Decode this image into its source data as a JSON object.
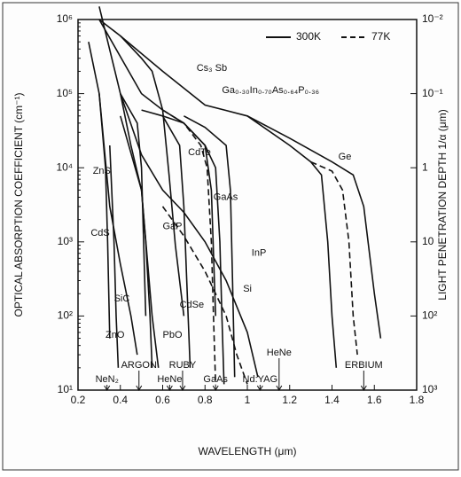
{
  "chart_data": {
    "type": "line",
    "ylabel": "OPTICAL ABSORPTION COEFFICIENT (cm⁻¹)",
    "y2label": "LIGHT PENETRATION DEPTH 1/α (μm)",
    "xlabel": "WAVELENGTH (μm)",
    "log_y": true,
    "log_y2": true,
    "y2_reversed": true,
    "xlim": [
      0.2,
      1.8
    ],
    "xticks": [
      0.2,
      0.4,
      0.6,
      0.8,
      1.0,
      1.2,
      1.4,
      1.6,
      1.8
    ],
    "ylim": [
      10,
      1000000
    ],
    "yticks": [
      {
        "value": 10,
        "label": "10¹"
      },
      {
        "value": 100,
        "label": "10²"
      },
      {
        "value": 1000,
        "label": "10³"
      },
      {
        "value": 10000,
        "label": "10⁴"
      },
      {
        "value": 100000,
        "label": "10⁵"
      },
      {
        "value": 1000000,
        "label": "10⁶"
      }
    ],
    "y2lim": [
      0.01,
      1000
    ],
    "y2ticks": [
      {
        "value": 0.01,
        "label": "10⁻²"
      },
      {
        "value": 0.1,
        "label": "10⁻¹"
      },
      1,
      10,
      {
        "value": 100,
        "label": "10²"
      },
      {
        "value": 1000,
        "label": "10³"
      }
    ],
    "legend": [
      {
        "label": "300K",
        "style": "solid"
      },
      {
        "label": "77K",
        "style": "dashed"
      }
    ],
    "color": "#111111",
    "series": [
      {
        "name": "Cs₃ Sb",
        "style": "solid",
        "x": [
          0.3,
          0.4,
          0.5,
          0.55,
          0.6,
          0.63,
          0.66,
          0.7
        ],
        "values": [
          1000000,
          600000,
          300000,
          200000,
          60000,
          8000,
          900,
          100
        ]
      },
      {
        "name": "Ge",
        "style": "solid",
        "x": [
          0.4,
          0.6,
          0.8,
          1.0,
          1.2,
          1.4,
          1.5,
          1.55,
          1.6,
          1.63
        ],
        "values": [
          600000,
          200000,
          70000,
          50000,
          25000,
          12000,
          8000,
          3000,
          200,
          50
        ]
      },
      {
        "style": "dashed",
        "x": [
          1.3,
          1.4,
          1.45,
          1.48,
          1.5,
          1.52
        ],
        "values": [
          12000,
          9000,
          5000,
          1000,
          100,
          30
        ]
      },
      {
        "name": "Ga₀.₃₀In₀.₇₀As₀.₆₄P₀.₃₆",
        "style": "solid",
        "x": [
          1.0,
          1.2,
          1.3,
          1.35,
          1.38,
          1.4,
          1.42
        ],
        "values": [
          50000,
          20000,
          12000,
          8000,
          1000,
          100,
          20
        ]
      },
      {
        "name": "Si",
        "style": "solid",
        "x": [
          0.3,
          0.4,
          0.5,
          0.6,
          0.7,
          0.8,
          0.9,
          1.0,
          1.05
        ],
        "values": [
          1500000,
          100000,
          15000,
          5000,
          2500,
          1000,
          300,
          60,
          15
        ]
      },
      {
        "style": "dashed",
        "x": [
          0.6,
          0.7,
          0.8,
          0.9,
          0.95,
          1.0
        ],
        "values": [
          3000,
          1200,
          400,
          100,
          30,
          12
        ]
      },
      {
        "name": "GaAs",
        "style": "solid",
        "x": [
          0.3,
          0.5,
          0.6,
          0.7,
          0.8,
          0.85,
          0.87,
          0.88,
          0.89
        ],
        "values": [
          1000000,
          100000,
          60000,
          40000,
          20000,
          10000,
          1000,
          100,
          12
        ]
      },
      {
        "style": "dashed",
        "x": [
          0.6,
          0.7,
          0.78,
          0.81,
          0.83,
          0.84,
          0.85
        ],
        "values": [
          60000,
          40000,
          20000,
          10000,
          1000,
          100,
          12
        ]
      },
      {
        "name": "InP",
        "style": "solid",
        "x": [
          0.7,
          0.8,
          0.9,
          0.92,
          0.93,
          0.94
        ],
        "values": [
          50000,
          35000,
          20000,
          5000,
          300,
          15
        ]
      },
      {
        "name": "CdTe",
        "style": "solid",
        "x": [
          0.5,
          0.6,
          0.7,
          0.8,
          0.83,
          0.85
        ],
        "values": [
          60000,
          50000,
          40000,
          20000,
          5000,
          100
        ]
      },
      {
        "name": "GaP",
        "style": "solid",
        "x": [
          0.4,
          0.45,
          0.5,
          0.52,
          0.54,
          0.55
        ],
        "values": [
          100000,
          20000,
          5000,
          1000,
          100,
          20
        ]
      },
      {
        "name": "ZnS",
        "style": "solid",
        "x": [
          0.25,
          0.3,
          0.33,
          0.34,
          0.35
        ],
        "values": [
          500000,
          100000,
          10000,
          1000,
          50
        ]
      },
      {
        "name": "CdS",
        "style": "solid",
        "x": [
          0.4,
          0.48,
          0.5,
          0.51,
          0.52
        ],
        "values": [
          100000,
          40000,
          10000,
          1000,
          100
        ]
      },
      {
        "name": "SiC",
        "style": "solid",
        "x": [
          0.3,
          0.35,
          0.4,
          0.45,
          0.48
        ],
        "values": [
          100000,
          3000,
          500,
          100,
          30
        ]
      },
      {
        "name": "ZnO",
        "style": "solid",
        "x": [
          0.35,
          0.37,
          0.38,
          0.39
        ],
        "values": [
          20000,
          1000,
          100,
          20
        ]
      },
      {
        "name": "CdSe",
        "style": "solid",
        "x": [
          0.6,
          0.68,
          0.7,
          0.72,
          0.73
        ],
        "values": [
          50000,
          20000,
          3000,
          100,
          20
        ]
      },
      {
        "name": "PbO",
        "style": "solid",
        "x": [
          0.4,
          0.5,
          0.55,
          0.58
        ],
        "values": [
          50000,
          5000,
          100,
          20
        ]
      }
    ],
    "lasers": [
      {
        "name": "NeN₂",
        "x": 0.337
      },
      {
        "name": "ARGON",
        "x": 0.488
      },
      {
        "name": "HeNe",
        "x": 0.633
      },
      {
        "name": "RUBY",
        "x": 0.694
      },
      {
        "name": "GaAs",
        "x": 0.85
      },
      {
        "name": "Nd:YAG",
        "x": 1.06
      },
      {
        "name": "HeNe",
        "x": 1.15
      },
      {
        "name": "ERBIUM",
        "x": 1.55
      }
    ]
  }
}
